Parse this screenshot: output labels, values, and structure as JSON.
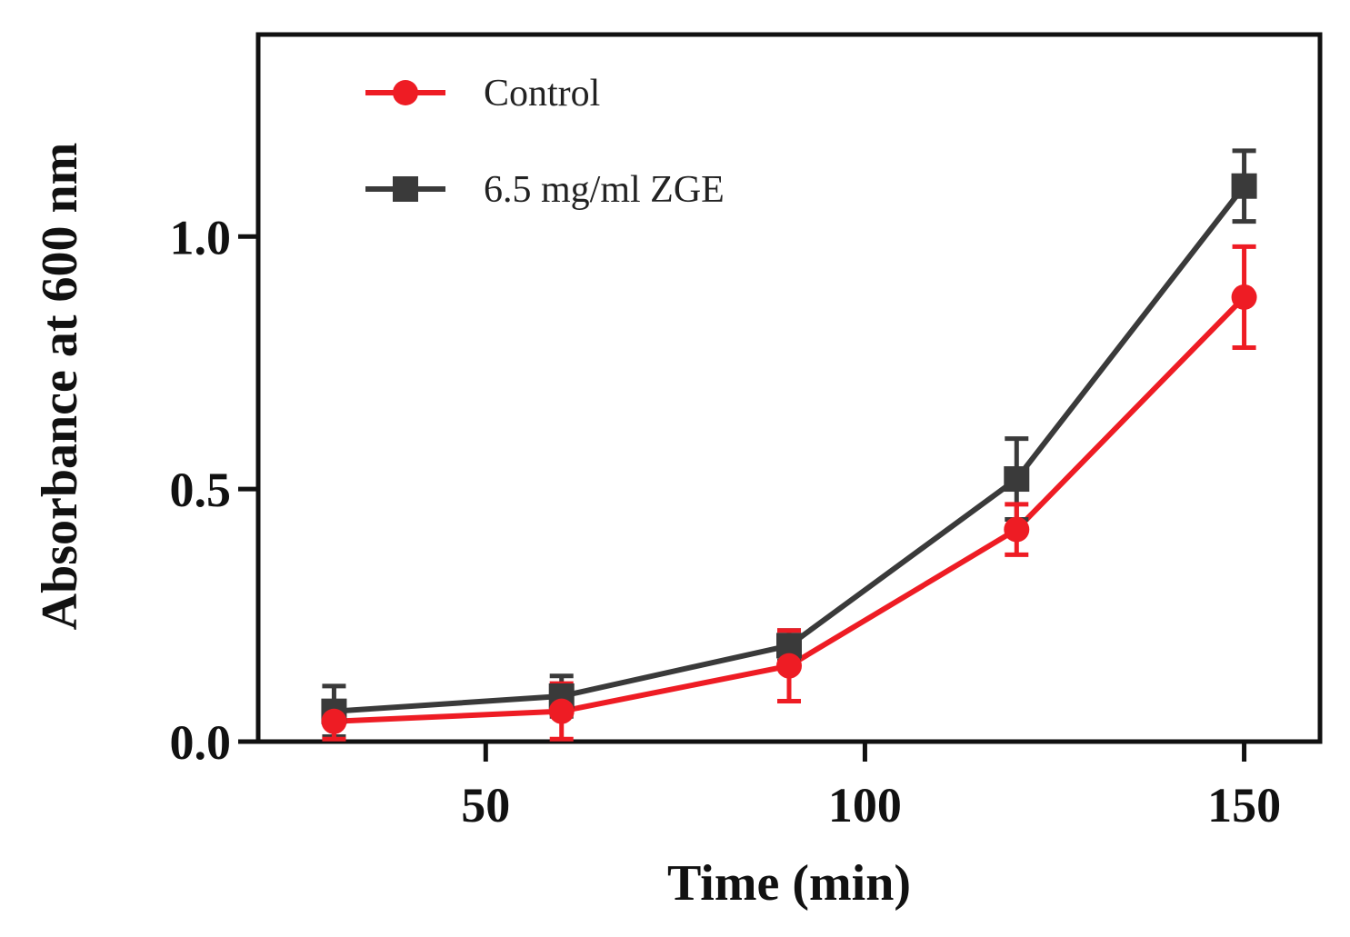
{
  "chart_data": {
    "type": "line",
    "title": "",
    "xlabel": "Time (min)",
    "ylabel": "Absorbance at 600 nm",
    "xlim": [
      20,
      160
    ],
    "ylim": [
      0,
      1.4
    ],
    "xticks": [
      50,
      100,
      150
    ],
    "xtick_labels": [
      "50",
      "100",
      "150"
    ],
    "yticks": [
      0.0,
      0.5,
      1.0
    ],
    "ytick_labels": [
      "0.0",
      "0.5",
      "1.0"
    ],
    "grid": false,
    "legend_position": "top-left",
    "x": [
      30,
      60,
      90,
      120,
      150
    ],
    "series": [
      {
        "name": "Control",
        "marker": "circle",
        "color": "#ee1c24",
        "values": [
          0.04,
          0.06,
          0.15,
          0.42,
          0.88
        ],
        "errors": [
          0.035,
          0.055,
          0.07,
          0.05,
          0.1
        ]
      },
      {
        "name": "6.5 mg/ml ZGE",
        "marker": "square",
        "color": "#3a3a3a",
        "values": [
          0.06,
          0.09,
          0.19,
          0.52,
          1.1
        ],
        "errors": [
          0.05,
          0.04,
          0.03,
          0.08,
          0.07
        ]
      }
    ]
  }
}
